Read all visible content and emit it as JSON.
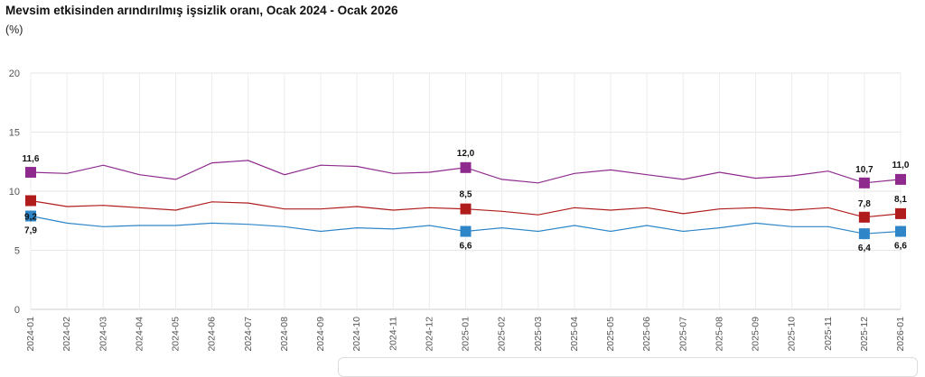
{
  "header": {
    "title": "Mevsim etkisinden arındırılmış işsizlik oranı, Ocak 2024 - Ocak 2026",
    "unit": "(%)"
  },
  "chart_data": {
    "type": "line",
    "title": "Mevsim etkisinden arındırılmış işsizlik oranı, Ocak 2024 - Ocak 2026",
    "ylabel": "(%)",
    "ylim": [
      0,
      20
    ],
    "yticks": [
      0,
      5,
      10,
      15,
      20
    ],
    "grid": true,
    "categories": [
      "2024-01",
      "2024-02",
      "2024-03",
      "2024-04",
      "2024-05",
      "2024-06",
      "2024-07",
      "2024-08",
      "2024-09",
      "2024-10",
      "2024-11",
      "2024-12",
      "2025-01",
      "2025-02",
      "2025-03",
      "2025-04",
      "2025-05",
      "2025-06",
      "2025-07",
      "2025-08",
      "2025-09",
      "2025-10",
      "2025-11",
      "2025-12",
      "2026-01"
    ],
    "series": [
      {
        "color": "#8e2a8e",
        "values": [
          11.6,
          11.5,
          12.2,
          11.4,
          11.0,
          12.4,
          12.6,
          11.4,
          12.2,
          12.1,
          11.5,
          11.6,
          12.0,
          11.0,
          10.7,
          11.5,
          11.8,
          11.4,
          11.0,
          11.6,
          11.1,
          11.3,
          11.7,
          10.7,
          11.0
        ],
        "labels": [
          {
            "index": 0,
            "text": "11,6"
          },
          {
            "index": 12,
            "text": "12,0"
          },
          {
            "index": 23,
            "text": "10,7"
          },
          {
            "index": 24,
            "text": "11,0"
          }
        ]
      },
      {
        "color": "#b01c1c",
        "values": [
          9.2,
          8.7,
          8.8,
          8.6,
          8.4,
          9.1,
          9.0,
          8.5,
          8.5,
          8.7,
          8.4,
          8.6,
          8.5,
          8.3,
          8.0,
          8.6,
          8.4,
          8.6,
          8.1,
          8.5,
          8.6,
          8.4,
          8.6,
          7.8,
          8.1
        ],
        "labels": [
          {
            "index": 0,
            "text": "9,2"
          },
          {
            "index": 12,
            "text": "8,5"
          },
          {
            "index": 23,
            "text": "7,8"
          },
          {
            "index": 24,
            "text": "8,1"
          }
        ]
      },
      {
        "color": "#2e86c8",
        "values": [
          7.9,
          7.3,
          7.0,
          7.1,
          7.1,
          7.3,
          7.2,
          7.0,
          6.6,
          6.9,
          6.8,
          7.1,
          6.6,
          6.9,
          6.6,
          7.1,
          6.6,
          7.1,
          6.6,
          6.9,
          7.3,
          7.0,
          7.0,
          6.4,
          6.6
        ],
        "labels": [
          {
            "index": 0,
            "text": "7,9"
          },
          {
            "index": 12,
            "text": "6,6"
          },
          {
            "index": 23,
            "text": "6,4"
          },
          {
            "index": 24,
            "text": "6,6"
          }
        ]
      }
    ]
  }
}
